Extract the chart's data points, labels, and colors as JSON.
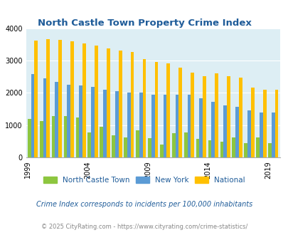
{
  "title": "North Castle Town Property Crime Index",
  "years": [
    1999,
    2000,
    2001,
    2002,
    2003,
    2004,
    2005,
    2006,
    2007,
    2008,
    2009,
    2010,
    2011,
    2012,
    2013,
    2014,
    2015,
    2016,
    2017,
    2018,
    2019
  ],
  "north_castle": [
    1200,
    1130,
    1270,
    1290,
    1240,
    770,
    940,
    690,
    630,
    840,
    590,
    390,
    760,
    780,
    570,
    530,
    490,
    620,
    450,
    620,
    450
  ],
  "new_york": [
    2580,
    2440,
    2330,
    2250,
    2220,
    2180,
    2100,
    2060,
    2010,
    2000,
    1950,
    1950,
    1940,
    1940,
    1830,
    1730,
    1620,
    1570,
    1450,
    1380,
    1380
  ],
  "national": [
    3610,
    3660,
    3640,
    3600,
    3520,
    3460,
    3370,
    3310,
    3270,
    3050,
    2960,
    2920,
    2770,
    2620,
    2510,
    2610,
    2510,
    2460,
    2170,
    2100,
    2100
  ],
  "colors": {
    "north_castle": "#8dc63f",
    "new_york": "#5b9bd5",
    "national": "#ffc000"
  },
  "bg_color": "#ddeef4",
  "ylim": [
    0,
    4000
  ],
  "yticks": [
    0,
    1000,
    2000,
    3000,
    4000
  ],
  "xtick_years": [
    1999,
    2004,
    2009,
    2014,
    2019
  ],
  "legend_labels": [
    "North Castle Town",
    "New York",
    "National"
  ],
  "footnote1": "Crime Index corresponds to incidents per 100,000 inhabitants",
  "footnote2": "© 2025 CityRating.com - https://www.cityrating.com/crime-statistics/",
  "title_color": "#1f5c99",
  "footnote1_color": "#1f5c99",
  "footnote2_color": "#888888"
}
